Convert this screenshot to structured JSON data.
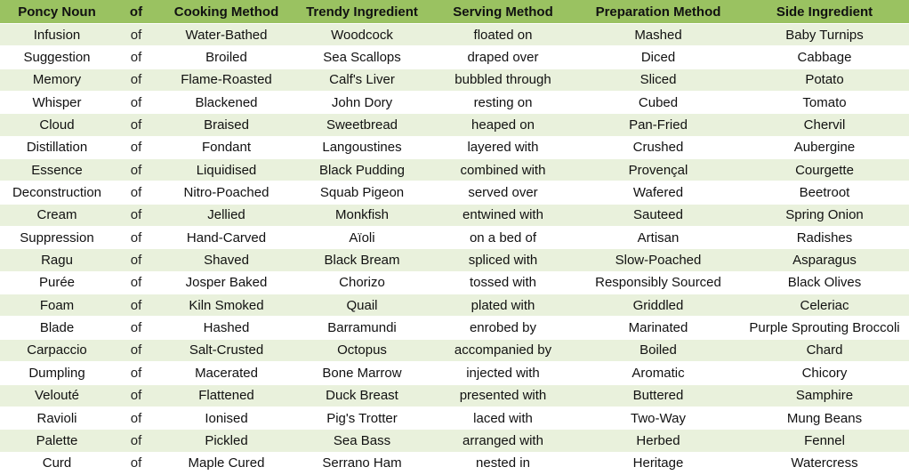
{
  "table": {
    "headers": [
      "Poncy Noun",
      "of",
      "Cooking Method",
      "Trendy Ingredient",
      "Serving Method",
      "Preparation Method",
      "Side Ingredient"
    ],
    "rows": [
      [
        "Infusion",
        "of",
        "Water-Bathed",
        "Woodcock",
        "floated on",
        "Mashed",
        "Baby Turnips"
      ],
      [
        "Suggestion",
        "of",
        "Broiled",
        "Sea Scallops",
        "draped over",
        "Diced",
        "Cabbage"
      ],
      [
        "Memory",
        "of",
        "Flame-Roasted",
        "Calf's Liver",
        "bubbled through",
        "Sliced",
        "Potato"
      ],
      [
        "Whisper",
        "of",
        "Blackened",
        "John Dory",
        "resting on",
        "Cubed",
        "Tomato"
      ],
      [
        "Cloud",
        "of",
        "Braised",
        "Sweetbread",
        "heaped on",
        "Pan-Fried",
        "Chervil"
      ],
      [
        "Distillation",
        "of",
        "Fondant",
        "Langoustines",
        "layered with",
        "Crushed",
        "Aubergine"
      ],
      [
        "Essence",
        "of",
        "Liquidised",
        "Black Pudding",
        "combined with",
        "Provençal",
        "Courgette"
      ],
      [
        "Deconstruction",
        "of",
        "Nitro-Poached",
        "Squab Pigeon",
        "served over",
        "Wafered",
        "Beetroot"
      ],
      [
        "Cream",
        "of",
        "Jellied",
        "Monkfish",
        "entwined with",
        "Sauteed",
        "Spring Onion"
      ],
      [
        "Suppression",
        "of",
        "Hand-Carved",
        "Aïoli",
        "on a bed of",
        "Artisan",
        "Radishes"
      ],
      [
        "Ragu",
        "of",
        "Shaved",
        "Black Bream",
        "spliced with",
        "Slow-Poached",
        "Asparagus"
      ],
      [
        "Purée",
        "of",
        "Josper Baked",
        "Chorizo",
        "tossed with",
        "Responsibly Sourced",
        "Black Olives"
      ],
      [
        "Foam",
        "of",
        "Kiln Smoked",
        "Quail",
        "plated with",
        "Griddled",
        "Celeriac"
      ],
      [
        "Blade",
        "of",
        "Hashed",
        "Barramundi",
        "enrobed by",
        "Marinated",
        "Purple Sprouting Broccoli"
      ],
      [
        "Carpaccio",
        "of",
        "Salt-Crusted",
        "Octopus",
        "accompanied by",
        "Boiled",
        "Chard"
      ],
      [
        "Dumpling",
        "of",
        "Macerated",
        "Bone Marrow",
        "injected with",
        "Aromatic",
        "Chicory"
      ],
      [
        "Velouté",
        "of",
        "Flattened",
        "Duck Breast",
        "presented with",
        "Buttered",
        "Samphire"
      ],
      [
        "Ravioli",
        "of",
        "Ionised",
        "Pig's Trotter",
        "laced with",
        "Two-Way",
        "Mung Beans"
      ],
      [
        "Palette",
        "of",
        "Pickled",
        "Sea Bass",
        "arranged with",
        "Herbed",
        "Fennel"
      ],
      [
        "Curd",
        "of",
        "Maple Cured",
        "Serrano Ham",
        "nested in",
        "Heritage",
        "Watercress"
      ]
    ]
  },
  "colors": {
    "header_bg": "#9ac261",
    "band_bg": "#e9f1dc",
    "plain_bg": "#ffffff"
  }
}
